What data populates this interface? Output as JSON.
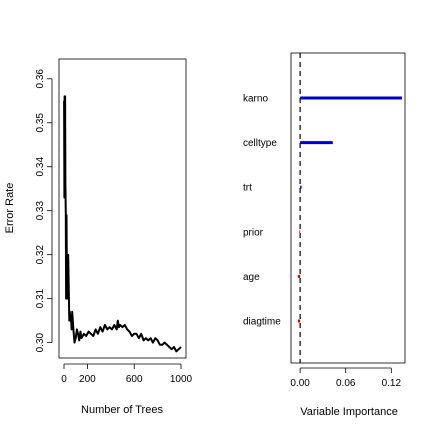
{
  "chart_data": [
    {
      "type": "line",
      "xlabel": "Number of Trees",
      "ylabel": "Error Rate",
      "xlim": [
        0,
        1000
      ],
      "ylim": [
        0.2965,
        0.3645
      ],
      "xticks": [
        0,
        200,
        600,
        1000
      ],
      "xtick_labels": [
        "0",
        "200",
        "600",
        "1000"
      ],
      "yticks": [
        0.3,
        0.31,
        0.32,
        0.33,
        0.34,
        0.35,
        0.36
      ],
      "ytick_labels": [
        "0.30",
        "0.31",
        "0.32",
        "0.33",
        "0.34",
        "0.35",
        "0.36"
      ],
      "series": [
        {
          "color": "#000000",
          "x": [
            1,
            3,
            5,
            7,
            9,
            12,
            15,
            18,
            21,
            24,
            27,
            30,
            33,
            36,
            40,
            45,
            50,
            55,
            60,
            65,
            70,
            80,
            90,
            100,
            110,
            120,
            130,
            140,
            150,
            170,
            190,
            210,
            230,
            250,
            270,
            290,
            310,
            330,
            350,
            370,
            390,
            410,
            430,
            450,
            460,
            470,
            480,
            500,
            520,
            540,
            560,
            580,
            600,
            620,
            640,
            660,
            680,
            700,
            720,
            740,
            760,
            780,
            800,
            820,
            840,
            860,
            880,
            900,
            920,
            940,
            960,
            980,
            1000
          ],
          "y": [
            0.355,
            0.333,
            0.356,
            0.345,
            0.356,
            0.336,
            0.329,
            0.31,
            0.329,
            0.318,
            0.31,
            0.32,
            0.314,
            0.32,
            0.313,
            0.305,
            0.307,
            0.305,
            0.306,
            0.303,
            0.307,
            0.303,
            0.3,
            0.301,
            0.303,
            0.302,
            0.3005,
            0.3025,
            0.301,
            0.302,
            0.3015,
            0.3025,
            0.302,
            0.3015,
            0.303,
            0.302,
            0.3035,
            0.3025,
            0.304,
            0.303,
            0.3035,
            0.303,
            0.304,
            0.303,
            0.305,
            0.3035,
            0.304,
            0.3035,
            0.304,
            0.303,
            0.3025,
            0.3015,
            0.302,
            0.302,
            0.301,
            0.302,
            0.3005,
            0.301,
            0.3005,
            0.301,
            0.3,
            0.301,
            0.3005,
            0.2995,
            0.2995,
            0.3,
            0.2995,
            0.299,
            0.2985,
            0.299,
            0.298,
            0.2985,
            0.299
          ]
        }
      ]
    },
    {
      "type": "bar",
      "orientation": "horizontal",
      "xlabel": "Variable Importance",
      "xlim": [
        -0.012,
        0.138
      ],
      "xticks": [
        0.0,
        0.06,
        0.12
      ],
      "xtick_labels": [
        "0.00",
        "0.06",
        "0.12"
      ],
      "reference_line": 0,
      "categories": [
        "karno",
        "celltype",
        "trt",
        "prior",
        "age",
        "diagtime"
      ],
      "values": [
        0.134,
        0.043,
        0.002,
        -0.001,
        -0.003,
        -0.003
      ],
      "colors": [
        "#0000cc",
        "#0000cc",
        "#0000cc",
        "#cc0000",
        "#cc0000",
        "#cc0000"
      ]
    }
  ]
}
